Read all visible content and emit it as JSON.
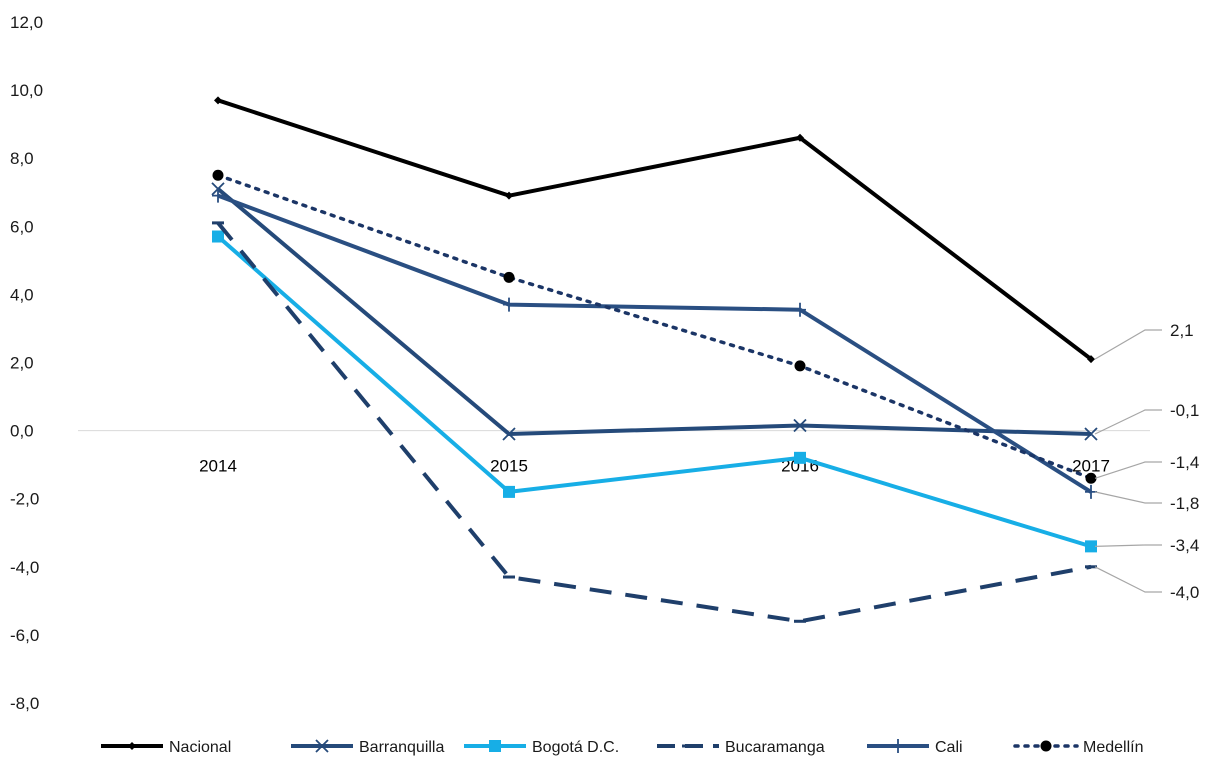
{
  "chart_data": {
    "type": "line",
    "categories": [
      "2014",
      "2015",
      "2016",
      "2017"
    ],
    "ylim": [
      -8,
      12
    ],
    "yticks": [
      "12,0",
      "10,0",
      "8,0",
      "6,0",
      "4,0",
      "2,0",
      "0,0",
      "-2,0",
      "-4,0",
      "-6,0",
      "-8,0"
    ],
    "grid": false,
    "legend_position": "bottom",
    "series": [
      {
        "name": "Nacional",
        "values": [
          9.7,
          6.9,
          8.6,
          2.1
        ],
        "color": "#000000",
        "dash": "solid",
        "marker": "diamond",
        "end_label": "2,1"
      },
      {
        "name": "Barranquilla",
        "values": [
          7.1,
          -0.1,
          0.15,
          -0.1
        ],
        "color": "#254a7a",
        "dash": "solid",
        "marker": "x",
        "end_label": "-0,1"
      },
      {
        "name": "Bogotá D.C.",
        "values": [
          5.7,
          -1.8,
          -0.8,
          -3.4
        ],
        "color": "#17aee6",
        "dash": "solid",
        "marker": "square",
        "end_label": "-3,4"
      },
      {
        "name": "Bucaramanga",
        "values": [
          6.1,
          -4.3,
          -5.6,
          -4.0
        ],
        "color": "#1f3f6b",
        "dash": "dash",
        "marker": "dash",
        "end_label": "-4,0"
      },
      {
        "name": "Cali",
        "values": [
          6.9,
          3.7,
          3.55,
          -1.8
        ],
        "color": "#2a4f82",
        "dash": "solid",
        "marker": "plus",
        "end_label": "-1,8"
      },
      {
        "name": "Medellín",
        "values": [
          7.5,
          4.5,
          1.9,
          -1.4
        ],
        "color": "#1b3566",
        "dash": "dot",
        "marker": "circle",
        "end_label": "-1,4"
      }
    ]
  }
}
